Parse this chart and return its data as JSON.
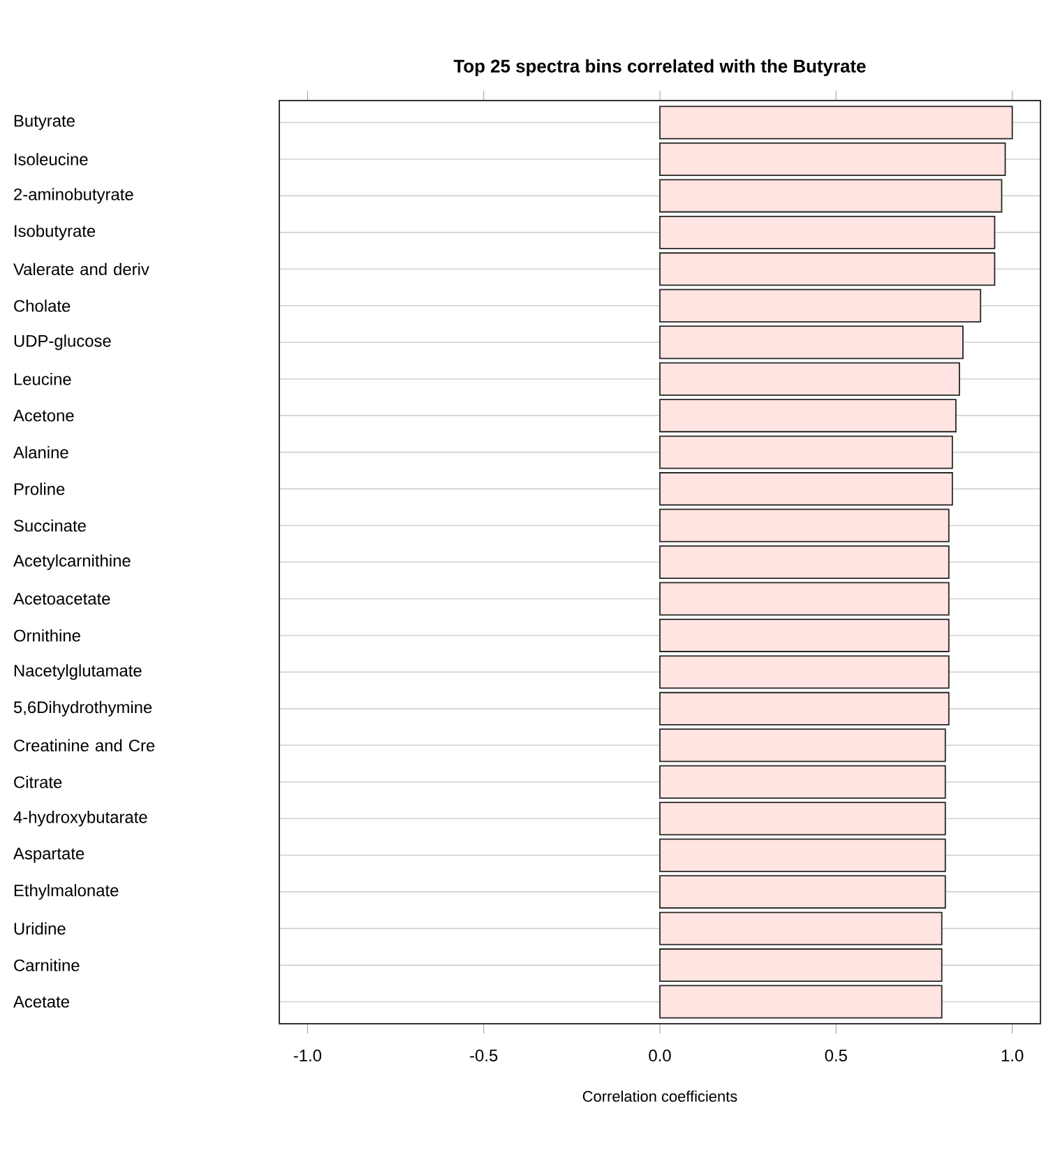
{
  "chart_data": {
    "type": "bar",
    "orientation": "horizontal",
    "title": "Top 25 spectra bins correlated with the Butyrate",
    "xlabel": "Correlation coefficients",
    "categories": [
      "Butyrate",
      "Isoleucine",
      "2-aminobutyrate",
      "Isobutyrate",
      "Valerate and deriv",
      "Cholate",
      "UDP-glucose",
      "Leucine",
      "Acetone",
      "Alanine",
      "Proline",
      "Succinate",
      "Acetylcarnithine",
      "Acetoacetate",
      "Ornithine",
      "Nacetylglutamate",
      "5,6Dihydrothymine",
      "Creatinine and Cre",
      "Citrate",
      "4-hydroxybutarate",
      "Aspartate",
      "Ethylmalonate",
      "Uridine",
      "Carnitine",
      "Acetate"
    ],
    "values": [
      1.0,
      0.98,
      0.97,
      0.95,
      0.95,
      0.91,
      0.86,
      0.85,
      0.84,
      0.83,
      0.83,
      0.82,
      0.82,
      0.82,
      0.82,
      0.82,
      0.82,
      0.81,
      0.81,
      0.81,
      0.81,
      0.81,
      0.8,
      0.8,
      0.8
    ],
    "color": "#ffe4e1",
    "xlim": [
      -1.08,
      1.08
    ],
    "xticks": [
      {
        "value": -1.0,
        "label": "-1.0"
      },
      {
        "value": -0.5,
        "label": "-0.5"
      },
      {
        "value": 0.0,
        "label": "0.0"
      },
      {
        "value": 0.5,
        "label": "0.5"
      },
      {
        "value": 1.0,
        "label": "1.0"
      }
    ],
    "grid": "y"
  }
}
